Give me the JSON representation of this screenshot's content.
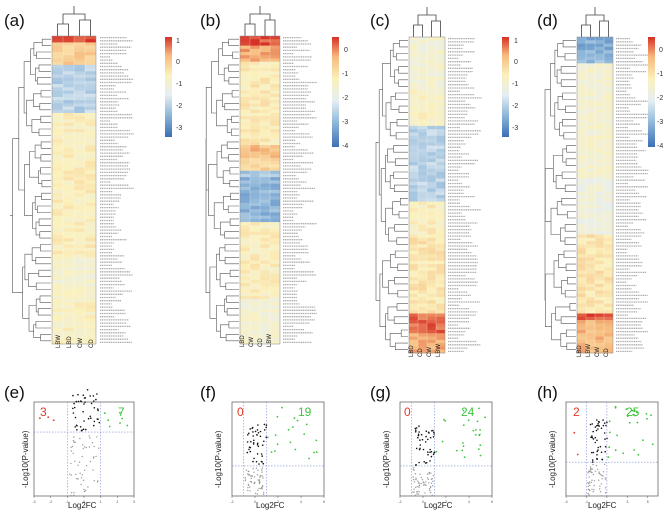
{
  "figure": {
    "colormap": [
      "#3b6fb6",
      "#8fb7d9",
      "#e6eef2",
      "#fbf1bd",
      "#f6b97c",
      "#d73027"
    ],
    "heatmaps": [
      {
        "label": "(a)",
        "columns": [
          "LBW",
          "LBD",
          "CW",
          "CD"
        ],
        "colorbar_ticks": [
          "1",
          "0",
          "-1",
          "-2",
          "-3"
        ],
        "colorbar_range": [
          -3.6,
          1
        ]
      },
      {
        "label": "(b)",
        "columns": [
          "LBD",
          "CW",
          "CD",
          "LBW"
        ],
        "colorbar_ticks": [
          "0",
          "-1",
          "-2",
          "-3",
          "-4"
        ],
        "colorbar_range": [
          -4,
          0.6
        ]
      },
      {
        "label": "(c)",
        "columns": [
          "LBD",
          "CD",
          "CW",
          "LBW"
        ],
        "colorbar_ticks": [
          "1",
          "0",
          "-1",
          "-2",
          "-3"
        ],
        "colorbar_range": [
          -3.6,
          1
        ]
      },
      {
        "label": "(d)",
        "columns": [
          "LBD",
          "LBW",
          "CW",
          "CD"
        ],
        "colorbar_ticks": [
          "0",
          "-1",
          "-2",
          "-3",
          "-4"
        ],
        "colorbar_range": [
          -4,
          0.6
        ]
      }
    ],
    "volcanoes": [
      {
        "label": "(e)",
        "down_count": "3",
        "up_count": "7",
        "xlabel": "Log2FC",
        "ylabel": "-Log10(P-value)"
      },
      {
        "label": "(f)",
        "down_count": "0",
        "up_count": "19",
        "xlabel": "Log2FC",
        "ylabel": "-Log10(P-value)"
      },
      {
        "label": "(g)",
        "down_count": "0",
        "up_count": "24",
        "xlabel": "Log2FC",
        "ylabel": "-Log10(P-value)"
      },
      {
        "label": "(h)",
        "down_count": "2",
        "up_count": "25",
        "xlabel": "Log2FC",
        "ylabel": "-Log10(P-value)"
      }
    ],
    "colors": {
      "down": "#e03a2a",
      "up": "#3cc43c",
      "nonsig": "#9a9a9a",
      "sig_black": "#111111",
      "threshold": "#7f8fd6"
    }
  }
}
